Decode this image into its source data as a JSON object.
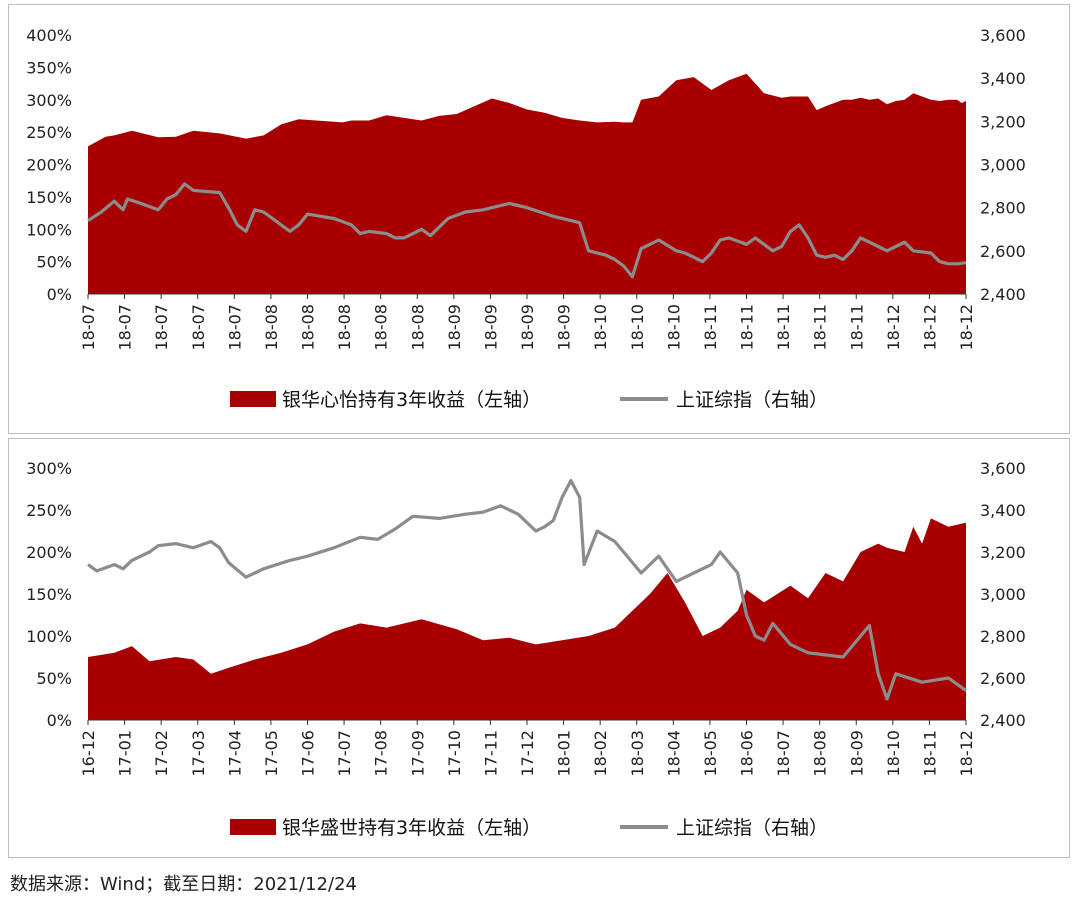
{
  "chart_data": [
    {
      "type": "area",
      "colors": {
        "returns": "#a80000",
        "index": "#8c8c8c"
      },
      "x_labels": [
        "18-07",
        "18-07",
        "18-07",
        "18-07",
        "18-07",
        "18-08",
        "18-08",
        "18-08",
        "18-08",
        "18-08",
        "18-09",
        "18-09",
        "18-09",
        "18-09",
        "18-10",
        "18-10",
        "18-10",
        "18-11",
        "18-11",
        "18-11",
        "18-11",
        "18-11",
        "18-12",
        "18-12",
        "18-12"
      ],
      "y_left": {
        "min": 0,
        "max": 400,
        "step": 50,
        "ticks": [
          "0%",
          "50%",
          "100%",
          "150%",
          "200%",
          "250%",
          "300%",
          "350%",
          "400%"
        ]
      },
      "y_right": {
        "min": 2400,
        "max": 3600,
        "step": 200,
        "ticks": [
          "2,400",
          "2,600",
          "2,800",
          "3,000",
          "3,200",
          "3,400",
          "3,600"
        ]
      },
      "series": [
        {
          "name": "银华心怡持有3年收益（左轴）",
          "axis": "left",
          "kind": "area",
          "values": [
            228,
            243,
            245,
            252,
            242,
            243,
            252,
            248,
            240,
            245,
            262,
            270,
            267,
            265,
            268,
            268,
            276,
            272,
            268,
            275,
            278,
            290,
            302,
            295,
            285,
            280,
            272,
            268,
            265,
            266,
            265,
            265,
            300,
            305,
            330,
            335,
            315,
            330,
            340,
            310,
            303,
            305,
            305,
            284,
            290,
            300,
            300,
            303,
            300,
            302,
            293,
            298,
            300,
            310,
            305,
            300,
            298,
            300,
            300,
            295,
            298
          ],
          "pct": [
            0,
            2,
            3,
            5,
            8,
            10,
            12,
            15,
            18,
            20,
            22,
            24,
            27,
            29,
            30,
            32,
            34,
            36,
            38,
            40,
            42,
            44,
            46,
            48,
            50,
            52,
            54,
            56,
            58,
            60,
            61,
            62,
            63,
            65,
            67,
            69,
            71,
            73,
            75,
            77,
            79,
            80,
            82,
            83,
            84,
            86,
            87,
            88,
            89,
            90,
            91,
            92,
            93,
            94,
            95,
            96,
            97,
            98,
            99,
            99.5,
            100
          ]
        },
        {
          "name": "上证综指（右轴）",
          "axis": "right",
          "kind": "line",
          "values": [
            2740,
            2780,
            2830,
            2790,
            2840,
            2820,
            2790,
            2840,
            2860,
            2910,
            2880,
            2870,
            2800,
            2720,
            2690,
            2790,
            2780,
            2720,
            2690,
            2720,
            2770,
            2750,
            2720,
            2680,
            2690,
            2680,
            2660,
            2660,
            2700,
            2670,
            2750,
            2780,
            2790,
            2800,
            2820,
            2800,
            2760,
            2740,
            2730,
            2600,
            2580,
            2560,
            2530,
            2480,
            2610,
            2650,
            2600,
            2590,
            2550,
            2590,
            2650,
            2660,
            2630,
            2660,
            2600,
            2620,
            2690,
            2720,
            2660,
            2580,
            2570,
            2580,
            2560,
            2600,
            2660,
            2640,
            2620,
            2600,
            2620,
            2640,
            2600,
            2590,
            2550,
            2540,
            2540,
            2545
          ],
          "pct": [
            0,
            1.5,
            3,
            4,
            4.5,
            6,
            8,
            9,
            10,
            11,
            12,
            15,
            16,
            17,
            18,
            19,
            20,
            22,
            23,
            24,
            25,
            28,
            30,
            31,
            32,
            34,
            35,
            36,
            38,
            39,
            41,
            43,
            45,
            46,
            48,
            50,
            53,
            55,
            56,
            57,
            59,
            60,
            61,
            62,
            63,
            65,
            67,
            68,
            70,
            71,
            72,
            73,
            75,
            76,
            78,
            79,
            80,
            81,
            82,
            83,
            84,
            85,
            86,
            87,
            88,
            89,
            90,
            91,
            92,
            93,
            94,
            96,
            97,
            98,
            99,
            100
          ]
        }
      ]
    },
    {
      "type": "area",
      "colors": {
        "returns": "#a80000",
        "index": "#8c8c8c"
      },
      "x_labels": [
        "16-12",
        "17-01",
        "17-02",
        "17-03",
        "17-04",
        "17-05",
        "17-06",
        "17-07",
        "17-08",
        "17-09",
        "17-10",
        "17-11",
        "17-12",
        "18-01",
        "18-02",
        "18-03",
        "18-04",
        "18-05",
        "18-06",
        "18-07",
        "18-08",
        "18-09",
        "18-10",
        "18-11",
        "18-12"
      ],
      "y_left": {
        "min": 0,
        "max": 300,
        "step": 50,
        "ticks": [
          "0%",
          "50%",
          "100%",
          "150%",
          "200%",
          "250%",
          "300%"
        ]
      },
      "y_right": {
        "min": 2400,
        "max": 3600,
        "step": 200,
        "ticks": [
          "2,400",
          "2,600",
          "2,800",
          "3,000",
          "3,200",
          "3,400",
          "3,600"
        ]
      },
      "series": [
        {
          "name": "银华盛世持有3年收益（左轴）",
          "axis": "left",
          "kind": "area",
          "values": [
            75,
            80,
            88,
            70,
            75,
            72,
            55,
            62,
            72,
            80,
            90,
            105,
            115,
            110,
            120,
            108,
            95,
            98,
            90,
            95,
            100,
            110,
            130,
            150,
            175,
            140,
            100,
            110,
            130,
            155,
            140,
            160,
            145,
            175,
            165,
            200,
            210,
            205,
            200,
            230,
            210,
            240,
            230,
            235
          ],
          "pct": [
            0,
            3,
            5,
            7,
            10,
            12,
            14,
            16,
            19,
            22,
            25,
            28,
            31,
            34,
            38,
            42,
            45,
            48,
            51,
            54,
            57,
            60,
            62,
            64,
            66,
            68,
            70,
            72,
            74,
            75,
            77,
            80,
            82,
            84,
            86,
            88,
            90,
            91,
            93,
            94,
            95,
            96,
            98,
            100
          ]
        },
        {
          "name": "上证综指（右轴）",
          "axis": "right",
          "kind": "line",
          "values": [
            3140,
            3110,
            3140,
            3120,
            3160,
            3200,
            3230,
            3240,
            3220,
            3250,
            3220,
            3150,
            3080,
            3100,
            3120,
            3160,
            3180,
            3220,
            3270,
            3260,
            3310,
            3370,
            3360,
            3380,
            3390,
            3420,
            3380,
            3300,
            3320,
            3350,
            3460,
            3540,
            3460,
            3140,
            3300,
            3250,
            3150,
            3100,
            3180,
            3060,
            3100,
            3140,
            3200,
            3100,
            2900,
            2800,
            2780,
            2860,
            2760,
            2720,
            2700,
            2850,
            2620,
            2500,
            2620,
            2580,
            2600,
            2540
          ],
          "pct": [
            0,
            1,
            3,
            4,
            5,
            7,
            8,
            10,
            12,
            14,
            15,
            16,
            18,
            19,
            20,
            23,
            25,
            28,
            31,
            33,
            35,
            37,
            40,
            43,
            45,
            47,
            49,
            51,
            52,
            53,
            54,
            55,
            56,
            56.5,
            58,
            60,
            62,
            63,
            65,
            67,
            69,
            71,
            72,
            74,
            75,
            76,
            77,
            78,
            80,
            82,
            86,
            89,
            90,
            91,
            92,
            95,
            98,
            100
          ]
        }
      ]
    }
  ],
  "legend": {
    "chart1_area": "银华心怡持有3年收益（左轴）",
    "chart1_line": "上证综指（右轴）",
    "chart2_area": "银华盛世持有3年收益（左轴）",
    "chart2_line": "上证综指（右轴）"
  },
  "source_note": "数据来源：Wind；截至日期：2021/12/24"
}
